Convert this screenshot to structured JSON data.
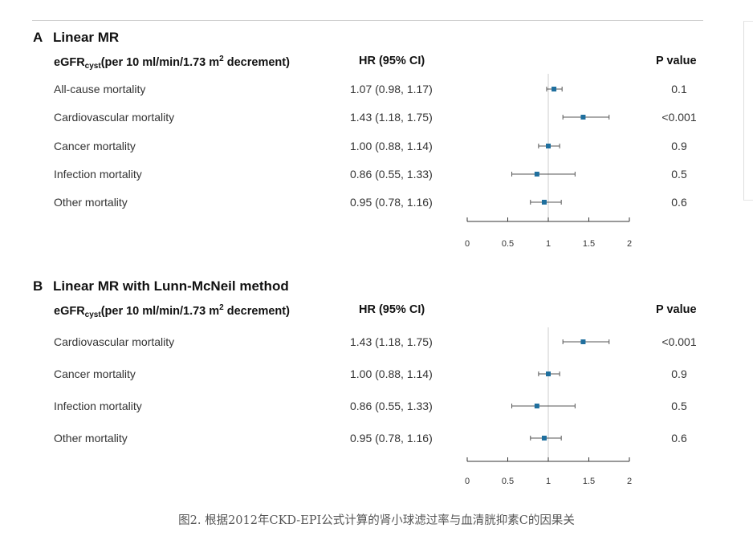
{
  "caption": "图2. 根据2012年CKD-EPI公式计算的肾小球滤过率与血清胱抑素C的因果关",
  "header": {
    "exposure_prefix": "eGFR",
    "exposure_sub": "cyst",
    "exposure_mid": "(per 10 ml/min/1.73 m",
    "exposure_sup": "2",
    "exposure_end": " decrement)",
    "hr_label": "HR (95% CI)",
    "p_label": "P value"
  },
  "chart_data": [
    {
      "type": "forest",
      "panel_letter": "A",
      "title": "Linear MR",
      "reference_line": 1,
      "xlim": [
        0,
        2
      ],
      "ticks": [
        0,
        0.5,
        1,
        1.5,
        2
      ],
      "tick_labels": [
        "0",
        "0.5",
        "1",
        "1.5",
        "2"
      ],
      "rows": [
        {
          "label": "All-cause mortality",
          "hr": 1.07,
          "lo": 0.98,
          "hi": 1.17,
          "hr_text": "1.07 (0.98, 1.17)",
          "p": "0.1"
        },
        {
          "label": "Cardiovascular mortality",
          "hr": 1.43,
          "lo": 1.18,
          "hi": 1.75,
          "hr_text": "1.43 (1.18, 1.75)",
          "p": "<0.001"
        },
        {
          "label": "Cancer mortality",
          "hr": 1.0,
          "lo": 0.88,
          "hi": 1.14,
          "hr_text": "1.00 (0.88, 1.14)",
          "p": "0.9"
        },
        {
          "label": "Infection mortality",
          "hr": 0.86,
          "lo": 0.55,
          "hi": 1.33,
          "hr_text": "0.86 (0.55, 1.33)",
          "p": "0.5"
        },
        {
          "label": "Other mortality",
          "hr": 0.95,
          "lo": 0.78,
          "hi": 1.16,
          "hr_text": "0.95 (0.78, 1.16)",
          "p": "0.6"
        }
      ]
    },
    {
      "type": "forest",
      "panel_letter": "B",
      "title": "Linear MR with Lunn-McNeil method",
      "reference_line": 1,
      "xlim": [
        0,
        2
      ],
      "ticks": [
        0,
        0.5,
        1,
        1.5,
        2
      ],
      "tick_labels": [
        "0",
        "0.5",
        "1",
        "1.5",
        "2"
      ],
      "rows": [
        {
          "label": "Cardiovascular mortality",
          "hr": 1.43,
          "lo": 1.18,
          "hi": 1.75,
          "hr_text": "1.43 (1.18, 1.75)",
          "p": "<0.001"
        },
        {
          "label": "Cancer mortality",
          "hr": 1.0,
          "lo": 0.88,
          "hi": 1.14,
          "hr_text": "1.00 (0.88, 1.14)",
          "p": "0.9"
        },
        {
          "label": "Infection mortality",
          "hr": 0.86,
          "lo": 0.55,
          "hi": 1.33,
          "hr_text": "0.86 (0.55, 1.33)",
          "p": "0.5"
        },
        {
          "label": "Other mortality",
          "hr": 0.95,
          "lo": 0.78,
          "hi": 1.16,
          "hr_text": "0.95 (0.78, 1.16)",
          "p": "0.6"
        }
      ]
    }
  ],
  "colors": {
    "point": "#1f6f9e",
    "ci_line": "#555555",
    "reference": "#cccccc",
    "axis": "#333333"
  }
}
